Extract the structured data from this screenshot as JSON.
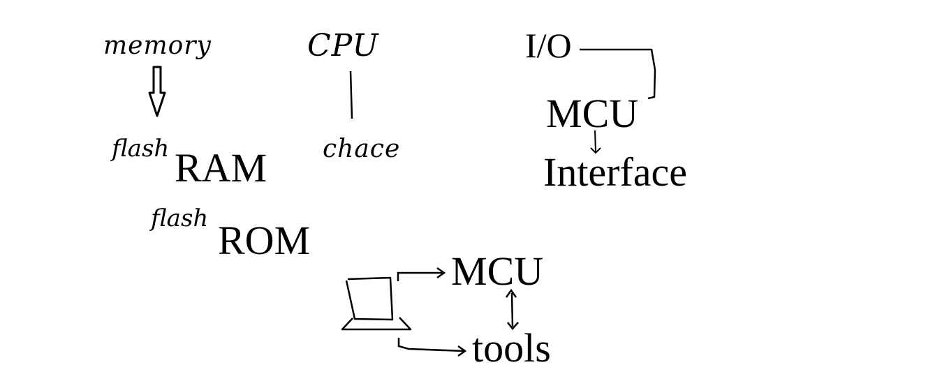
{
  "labels": {
    "memory": "memory",
    "cpu": "CPU",
    "io": "I/O",
    "flash_ram_prefix": "flash",
    "ram": "RAM",
    "flash_rom_prefix": "flash",
    "rom": "ROM",
    "chace": "chace",
    "mcu_top": "MCU",
    "interface": "Interface",
    "mcu_bottom": "MCU",
    "tools": "tools"
  },
  "colors": {
    "ink": "#000000",
    "background": "#ffffff"
  }
}
